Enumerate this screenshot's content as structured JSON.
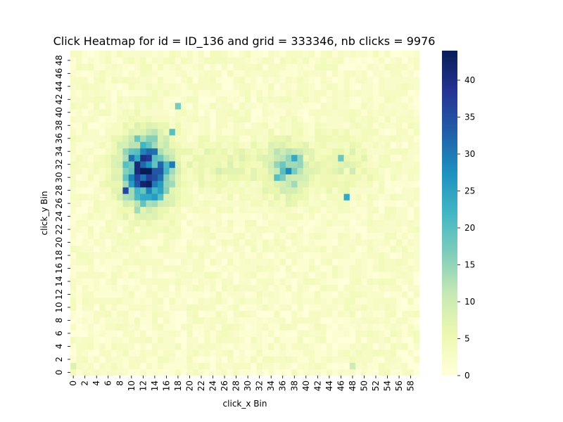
{
  "chart_data": {
    "type": "heatmap",
    "title": "Click Heatmap for id = ID_136 and grid = 333346, nb clicks = 9976",
    "xlabel": "click_x Bin",
    "ylabel": "click_y Bin",
    "x_bins": 60,
    "y_bins": 50,
    "x_tick_labels": [
      "0",
      "2",
      "4",
      "6",
      "8",
      "10",
      "12",
      "14",
      "16",
      "18",
      "20",
      "22",
      "24",
      "26",
      "28",
      "30",
      "32",
      "34",
      "36",
      "38",
      "40",
      "42",
      "44",
      "46",
      "48",
      "50",
      "52",
      "54",
      "56",
      "58"
    ],
    "y_tick_labels": [
      "0",
      "2",
      "4",
      "6",
      "8",
      "10",
      "12",
      "14",
      "16",
      "18",
      "20",
      "22",
      "24",
      "26",
      "28",
      "30",
      "32",
      "34",
      "36",
      "38",
      "40",
      "42",
      "44",
      "46",
      "48"
    ],
    "y_origin": "bottom",
    "colormap": "YlGnBu",
    "colorbar": {
      "min": 0,
      "max": 44,
      "ticks": [
        "0",
        "5",
        "10",
        "15",
        "20",
        "25",
        "30",
        "35",
        "40"
      ],
      "stops": [
        "#ffffd9",
        "#edf8b1",
        "#c7e9b4",
        "#7fcdbb",
        "#41b6c4",
        "#1d91c0",
        "#225ea8",
        "#253494",
        "#081d58"
      ]
    },
    "clusters": [
      {
        "cx": 12.5,
        "cy": 31,
        "sx": 2.8,
        "sy": 3.6,
        "peak": 40
      },
      {
        "cx": 37,
        "cy": 31.5,
        "sx": 2.6,
        "sy": 2.8,
        "peak": 15
      },
      {
        "cx": 26,
        "cy": 32,
        "sx": 4,
        "sy": 2.5,
        "peak": 6
      },
      {
        "cx": 47,
        "cy": 32,
        "sx": 3,
        "sy": 3,
        "peak": 6
      }
    ],
    "notable_cells": [
      {
        "x": 12,
        "y": 31,
        "value": 44
      },
      {
        "x": 13,
        "y": 33,
        "value": 38
      },
      {
        "x": 9,
        "y": 28,
        "value": 36
      },
      {
        "x": 14,
        "y": 30,
        "value": 35
      },
      {
        "x": 11,
        "y": 29,
        "value": 34
      },
      {
        "x": 17,
        "y": 37,
        "value": 20
      },
      {
        "x": 17,
        "y": 32,
        "value": 30
      },
      {
        "x": 18,
        "y": 41,
        "value": 17
      },
      {
        "x": 37,
        "y": 31,
        "value": 28
      },
      {
        "x": 38,
        "y": 33,
        "value": 24
      },
      {
        "x": 35,
        "y": 30,
        "value": 20
      },
      {
        "x": 47,
        "y": 27,
        "value": 24
      },
      {
        "x": 46,
        "y": 33,
        "value": 18
      },
      {
        "x": 48,
        "y": 1,
        "value": 10
      },
      {
        "x": 0,
        "y": 1,
        "value": 8
      }
    ],
    "background_range": [
      0,
      4
    ]
  }
}
